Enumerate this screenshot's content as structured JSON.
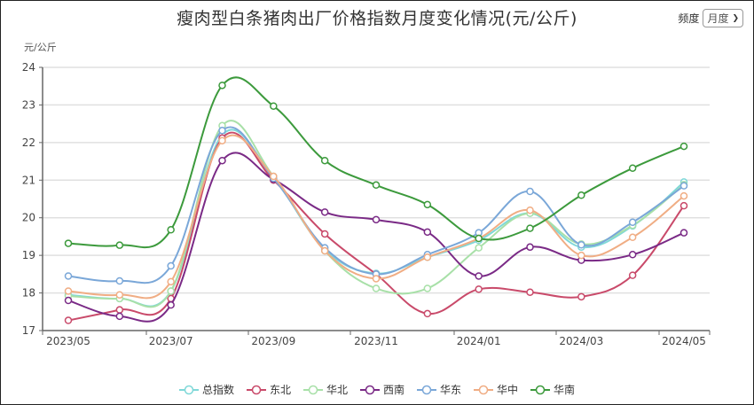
{
  "header": {
    "title": "瘦肉型白条猪肉出厂价格指数月度变化情况(元/公斤)",
    "frequency_label": "频度",
    "frequency_value": "月度"
  },
  "axis": {
    "y_unit": "元/公斤"
  },
  "chart_data": {
    "type": "line",
    "title": "瘦肉型白条猪肉出厂价格指数月度变化情况(元/公斤)",
    "xlabel": "",
    "ylabel": "元/公斤",
    "ylim": [
      17,
      24
    ],
    "yticks": [
      17,
      18,
      19,
      20,
      21,
      22,
      23,
      24
    ],
    "x": [
      "2023/05",
      "2023/06",
      "2023/07",
      "2023/08",
      "2023/09",
      "2023/10",
      "2023/11",
      "2023/12",
      "2024/01",
      "2024/02",
      "2024/03",
      "2024/04",
      "2024/05"
    ],
    "xtick_labels": [
      "2023/05",
      "2023/07",
      "2023/09",
      "2023/11",
      "2024/01",
      "2024/03",
      "2024/05"
    ],
    "grid": true,
    "smooth": true,
    "legend_position": "bottom",
    "series": [
      {
        "name": "总指数",
        "color": "#7fd8d8",
        "values": [
          17.95,
          17.85,
          18.05,
          22.2,
          21.05,
          19.15,
          18.52,
          18.95,
          19.4,
          20.12,
          19.22,
          19.78,
          20.95
        ]
      },
      {
        "name": "东北",
        "color": "#c94a6a",
        "values": [
          17.27,
          17.55,
          17.85,
          22.12,
          21.0,
          19.57,
          18.5,
          17.45,
          18.1,
          18.02,
          17.9,
          18.47,
          20.32
        ]
      },
      {
        "name": "华北",
        "color": "#a8e0a8",
        "values": [
          17.92,
          17.85,
          18.05,
          22.45,
          21.1,
          19.12,
          18.12,
          18.12,
          19.2,
          20.12,
          19.3,
          19.8,
          20.88
        ]
      },
      {
        "name": "西南",
        "color": "#7a2a86",
        "values": [
          17.8,
          17.38,
          17.68,
          21.52,
          21.02,
          20.15,
          19.95,
          19.62,
          18.45,
          19.22,
          18.87,
          19.02,
          19.6
        ]
      },
      {
        "name": "华东",
        "color": "#7aa7d8",
        "values": [
          18.45,
          18.32,
          18.72,
          22.32,
          21.05,
          19.2,
          18.5,
          19.02,
          19.6,
          20.7,
          19.28,
          19.88,
          20.85
        ]
      },
      {
        "name": "华中",
        "color": "#f0ad84",
        "values": [
          18.05,
          17.95,
          18.3,
          22.05,
          21.1,
          19.12,
          18.38,
          18.95,
          19.45,
          20.2,
          19.0,
          19.48,
          20.58
        ]
      },
      {
        "name": "华南",
        "color": "#3c9a3c",
        "values": [
          19.32,
          19.27,
          19.68,
          23.52,
          22.97,
          21.52,
          20.87,
          20.35,
          19.45,
          19.72,
          20.6,
          21.32,
          21.9
        ]
      }
    ]
  },
  "legend": {
    "items": [
      {
        "label": "总指数",
        "color": "#7fd8d8"
      },
      {
        "label": "东北",
        "color": "#c94a6a"
      },
      {
        "label": "华北",
        "color": "#a8e0a8"
      },
      {
        "label": "西南",
        "color": "#7a2a86"
      },
      {
        "label": "华东",
        "color": "#7aa7d8"
      },
      {
        "label": "华中",
        "color": "#f0ad84"
      },
      {
        "label": "华南",
        "color": "#3c9a3c"
      }
    ]
  }
}
